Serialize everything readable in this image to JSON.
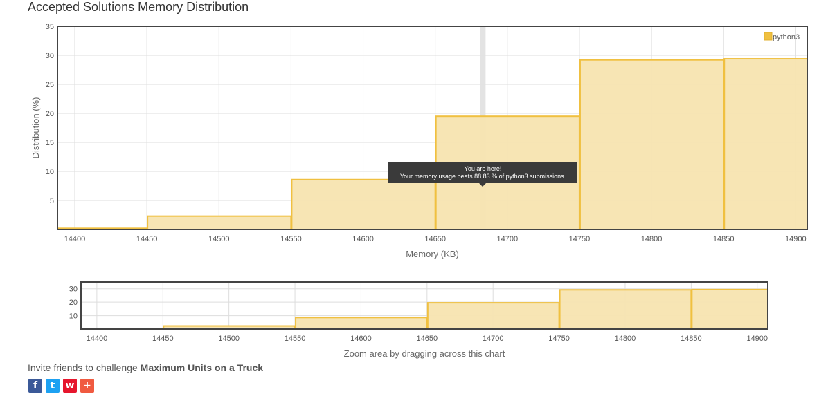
{
  "page_title": "Accepted Solutions Memory Distribution",
  "tooltip": {
    "line1": "You are here!",
    "line2": "Your memory usage beats 88.83 % of python3 submissions."
  },
  "chart_data": [
    {
      "type": "bar",
      "title": "Accepted Solutions Memory Distribution",
      "xlabel": "Memory (KB)",
      "ylabel": "Distribution (%)",
      "xlim": [
        14388,
        14908
      ],
      "ylim": [
        0,
        35
      ],
      "x_ticks": [
        14400,
        14450,
        14500,
        14550,
        14600,
        14650,
        14700,
        14750,
        14800,
        14850,
        14900
      ],
      "y_ticks": [
        5,
        10,
        15,
        20,
        25,
        30,
        35
      ],
      "bins": [
        {
          "from": 14388,
          "to": 14450,
          "value": 0.2
        },
        {
          "from": 14450,
          "to": 14550,
          "value": 2.3
        },
        {
          "from": 14550,
          "to": 14650,
          "value": 8.6
        },
        {
          "from": 14650,
          "to": 14750,
          "value": 19.5
        },
        {
          "from": 14750,
          "to": 14850,
          "value": 29.2
        },
        {
          "from": 14850,
          "to": 14908,
          "value": 29.4
        }
      ],
      "series": [
        {
          "name": "python3"
        }
      ],
      "marker_x": 14683,
      "grid": true,
      "legend": "top-right",
      "bar_color": "#f0c040",
      "bar_fill": "#f7e4b0"
    },
    {
      "type": "bar",
      "xlabel": "Zoom area by dragging across this chart",
      "xlim": [
        14388,
        14908
      ],
      "ylim": [
        0,
        35
      ],
      "x_ticks": [
        14400,
        14450,
        14500,
        14550,
        14600,
        14650,
        14700,
        14750,
        14800,
        14850,
        14900
      ],
      "y_ticks": [
        10,
        20,
        30
      ],
      "bins": [
        {
          "from": 14388,
          "to": 14450,
          "value": 0.2
        },
        {
          "from": 14450,
          "to": 14550,
          "value": 2.3
        },
        {
          "from": 14550,
          "to": 14650,
          "value": 8.6
        },
        {
          "from": 14650,
          "to": 14750,
          "value": 19.5
        },
        {
          "from": 14750,
          "to": 14850,
          "value": 29.2
        },
        {
          "from": 14850,
          "to": 14908,
          "value": 29.4
        }
      ],
      "grid": true
    }
  ],
  "invite": {
    "prefix": "Invite friends to challenge ",
    "problem": "Maximum Units on a Truck"
  },
  "share_buttons": [
    {
      "icon": "facebook-icon",
      "glyph": "f",
      "color": "#3b5998"
    },
    {
      "icon": "twitter-icon",
      "glyph": "t",
      "color": "#1da1f2"
    },
    {
      "icon": "weibo-icon",
      "glyph": "w",
      "color": "#e6162d"
    },
    {
      "icon": "plus-icon",
      "glyph": "+",
      "color": "#f05a40"
    }
  ]
}
